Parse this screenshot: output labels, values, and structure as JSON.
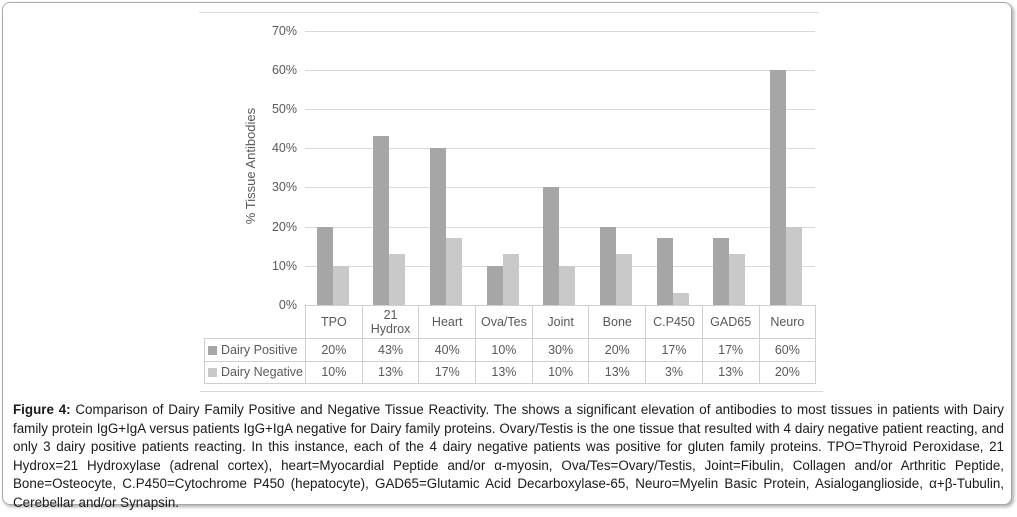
{
  "figure": {
    "caption_label": "Figure 4:",
    "caption_text": " Comparison of Dairy Family Positive and Negative Tissue Reactivity. The shows a significant elevation of antibodies to most tissues in patients with Dairy family protein IgG+IgA versus patients IgG+IgA negative for Dairy family proteins.  Ovary/Testis is the one tissue that resulted with 4 dairy negative patient reacting, and only 3 dairy positive patients reacting.  In this instance, each of the 4 dairy negative patients was positive for gluten family proteins.  TPO=Thyroid Peroxidase, 21 Hydrox=21 Hydroxylase (adrenal cortex), heart=Myocardial Peptide and/or α-myosin, Ova/Tes=Ovary/Testis, Joint=Fibulin, Collagen and/or Arthritic Peptide, Bone=Osteocyte, C.P450=Cytochrome P450 (hepatocyte), GAD65=Glutamic Acid Decarboxylase-65, Neuro=Myelin Basic Protein, Asialoganglioside, α+β-Tubulin, Cerebellar and/or Synapsin."
  },
  "chart_data": {
    "type": "bar",
    "title": "",
    "xlabel": "",
    "ylabel": "% Tissue Antibodies",
    "ylim": [
      0,
      70
    ],
    "y_ticks": [
      "0%",
      "10%",
      "20%",
      "30%",
      "40%",
      "50%",
      "60%",
      "70%"
    ],
    "grid": true,
    "legend_position": "data-table-left",
    "data_table_shown": true,
    "categories": [
      "TPO",
      "21 Hydrox",
      "Heart",
      "Ova/Tes",
      "Joint",
      "Bone",
      "C.P450",
      "GAD65",
      "Neuro"
    ],
    "series": [
      {
        "name": "Dairy Positive",
        "color": "#a6a6a6",
        "values": [
          20,
          43,
          40,
          10,
          30,
          20,
          17,
          17,
          60
        ],
        "labels": [
          "20%",
          "43%",
          "40%",
          "10%",
          "30%",
          "20%",
          "17%",
          "17%",
          "60%"
        ]
      },
      {
        "name": "Dairy Negative",
        "color": "#c9c9c9",
        "values": [
          10,
          13,
          17,
          13,
          10,
          13,
          3,
          13,
          20
        ],
        "labels": [
          "10%",
          "13%",
          "17%",
          "13%",
          "10%",
          "13%",
          "3%",
          "13%",
          "20%"
        ]
      }
    ],
    "colors": {
      "gridline": "#d9d9d9",
      "axis_text": "#595959",
      "table_border": "#cfcfcf",
      "caption_text": "#1a1a1a"
    }
  }
}
